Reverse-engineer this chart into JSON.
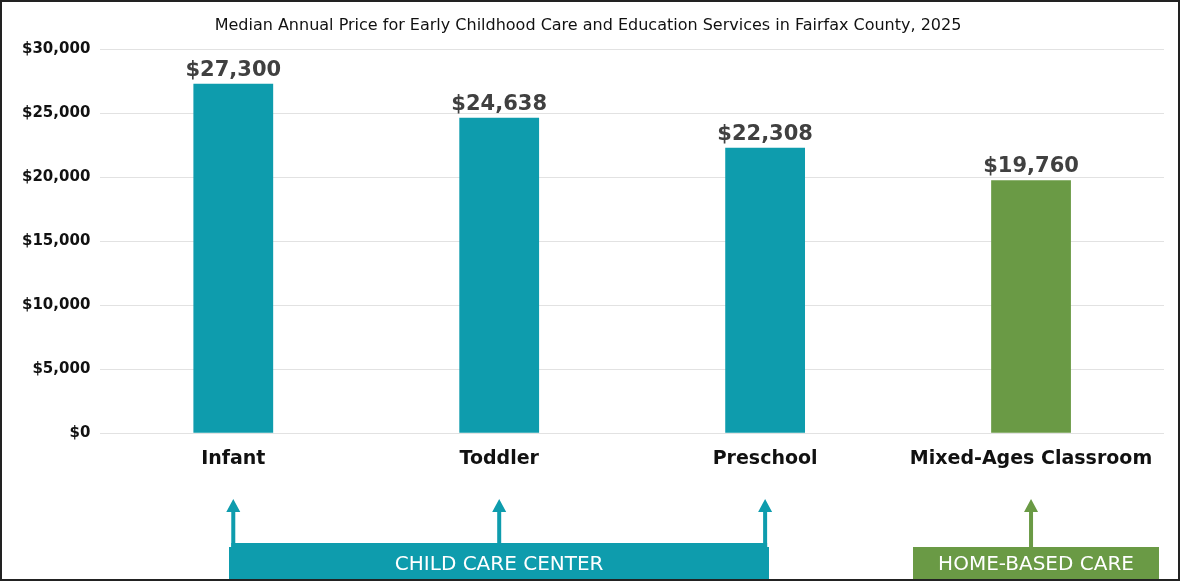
{
  "chart_data": {
    "type": "bar",
    "title": "Median Annual Price for Early Childhood Care and Education Services in Fairfax County, 2025",
    "categories": [
      "Infant",
      "Toddler",
      "Preschool",
      "Mixed-Ages Classroom"
    ],
    "values": [
      27300,
      24638,
      22308,
      19760
    ],
    "value_labels": [
      "$27,300",
      "$24,638",
      "$22,308",
      "$19,760"
    ],
    "colors": [
      "#0e9cad",
      "#0e9cad",
      "#0e9cad",
      "#6a9a45"
    ],
    "ylim": [
      0,
      30000
    ],
    "yticks": [
      {
        "value": 0,
        "label": "$0"
      },
      {
        "value": 5000,
        "label": "$5,000"
      },
      {
        "value": 10000,
        "label": "$10,000"
      },
      {
        "value": 15000,
        "label": "$15,000"
      },
      {
        "value": 20000,
        "label": "$20,000"
      },
      {
        "value": 25000,
        "label": "$25,000"
      },
      {
        "value": 30000,
        "label": "$30,000"
      }
    ],
    "grid": "y",
    "legend": false,
    "annotations": [
      "CHILD CARE CENTER",
      "HOME-BASED CARE"
    ]
  }
}
